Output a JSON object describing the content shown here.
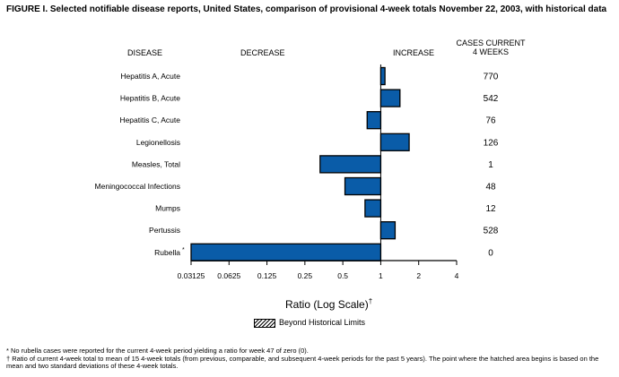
{
  "title": "FIGURE I. Selected notifiable disease reports, United States, comparison of provisional 4-week totals November 22, 2003, with historical data",
  "headers": {
    "disease": "DISEASE",
    "decrease": "DECREASE",
    "increase": "INCREASE",
    "cases_line1": "CASES CURRENT",
    "cases_line2": "4 WEEKS"
  },
  "legend": {
    "label": "Beyond Historical Limits"
  },
  "footnotes": [
    {
      "mark": "*",
      "text": "No rubella cases were reported for the current 4-week period yielding a ratio for week 47 of zero (0)."
    },
    {
      "mark": "†",
      "text": "Ratio of current 4-week total to mean of 15 4-week totals (from previous, comparable, and subsequent 4-week periods for the past 5 years). The point where the hatched area begins is based on the mean and two standard deviations of these 4-week totals."
    }
  ],
  "colors": {
    "bar": "#0a5ca8",
    "stroke": "#000000"
  },
  "chart_data": {
    "type": "bar",
    "orientation": "horizontal",
    "x_scale": "log2",
    "xlabel": "Ratio (Log Scale)",
    "xlabel_mark": "†",
    "xlim": [
      0.03125,
      4
    ],
    "ticks": [
      {
        "value": 0.03125,
        "label": "0.03125"
      },
      {
        "value": 0.0625,
        "label": "0.0625"
      },
      {
        "value": 0.125,
        "label": "0.125"
      },
      {
        "value": 0.25,
        "label": "0.25"
      },
      {
        "value": 0.5,
        "label": "0.5"
      },
      {
        "value": 1,
        "label": "1"
      },
      {
        "value": 2,
        "label": "2"
      },
      {
        "value": 4,
        "label": "4"
      }
    ],
    "baseline": 1,
    "rows": [
      {
        "disease": "Hepatitis A, Acute",
        "ratio": 1.08,
        "cases": "770"
      },
      {
        "disease": "Hepatitis B, Acute",
        "ratio": 1.42,
        "cases": "542"
      },
      {
        "disease": "Hepatitis C, Acute",
        "ratio": 0.78,
        "cases": "76"
      },
      {
        "disease": "Legionellosis",
        "ratio": 1.68,
        "cases": "126"
      },
      {
        "disease": "Measles, Total",
        "ratio": 0.33,
        "cases": "1"
      },
      {
        "disease": "Meningococcal Infections",
        "ratio": 0.52,
        "cases": "48"
      },
      {
        "disease": "Mumps",
        "ratio": 0.75,
        "cases": "12"
      },
      {
        "disease": "Pertussis",
        "ratio": 1.3,
        "cases": "528"
      },
      {
        "disease": "Rubella",
        "mark": "*",
        "ratio": 0.03125,
        "cases": "0"
      }
    ]
  }
}
